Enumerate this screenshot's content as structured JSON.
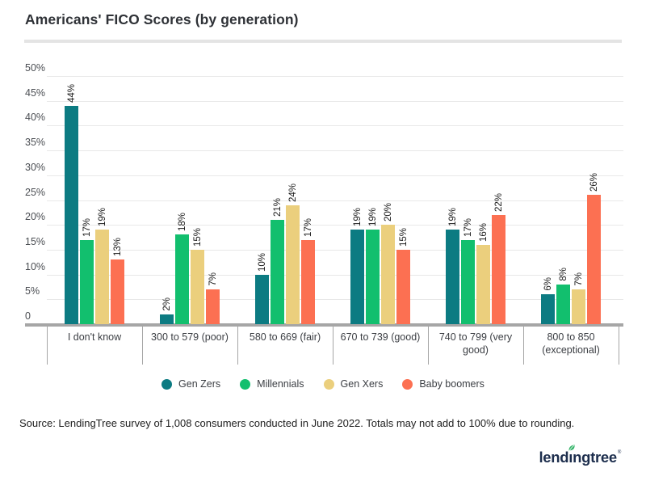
{
  "title": "Americans' FICO Scores (by generation)",
  "source_note": "Source: LendingTree survey of 1,008 consumers conducted in June 2022. Totals may not add to 100% due to rounding.",
  "logo": {
    "text_pre": "lend",
    "text_i": "ı",
    "text_post": "ngtree",
    "reg": "®"
  },
  "colors": {
    "axis": "#a6a6a6",
    "gridline": "#e8e8e8",
    "title_text": "#2f3237",
    "logo_navy": "#1d2e4d",
    "leaf_green": "#35b56a"
  },
  "chart_data": {
    "type": "bar",
    "title": "Americans' FICO Scores (by generation)",
    "categories": [
      "I don't know",
      "300 to 579 (poor)",
      "580 to 669 (fair)",
      "670 to 739 (good)",
      "740 to 799 (very good)",
      "800 to 850 (exceptional)"
    ],
    "series": [
      {
        "name": "Gen Zers",
        "color": "#0c7b82",
        "values": [
          44,
          2,
          10,
          19,
          19,
          6
        ]
      },
      {
        "name": "Millennials",
        "color": "#12bf6e",
        "values": [
          17,
          18,
          21,
          19,
          17,
          8
        ]
      },
      {
        "name": "Gen Xers",
        "color": "#ebcf7d",
        "values": [
          19,
          15,
          24,
          20,
          16,
          7
        ]
      },
      {
        "name": "Baby boomers",
        "color": "#fc7052",
        "values": [
          13,
          7,
          17,
          15,
          22,
          26
        ]
      }
    ],
    "xlabel": "",
    "ylabel": "",
    "ylim": [
      0,
      50
    ],
    "y_ticks": [
      0,
      5,
      10,
      15,
      20,
      25,
      30,
      35,
      40,
      45,
      50
    ],
    "y_tick_suffix": "%",
    "zero_tick_label": "0",
    "data_label_suffix": "%",
    "grid": true,
    "legend_position": "bottom"
  }
}
